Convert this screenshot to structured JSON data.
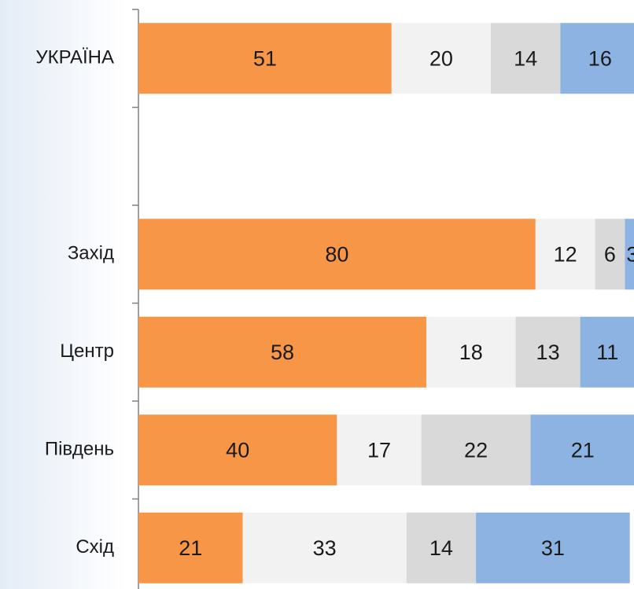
{
  "chart_data": {
    "type": "stacked_barh",
    "categories": [
      "УКРАЇНА",
      null,
      "Захід",
      "Центр",
      "Південь",
      "Схід"
    ],
    "series": [
      {
        "color": "#f79646",
        "values": [
          51,
          null,
          80,
          58,
          40,
          21
        ]
      },
      {
        "color": "#f2f2f2",
        "values": [
          20,
          null,
          12,
          18,
          17,
          33
        ]
      },
      {
        "color": "#d9d9d9",
        "values": [
          14,
          null,
          6,
          13,
          22,
          14
        ]
      },
      {
        "color": "#8db3e2",
        "values": [
          16,
          null,
          3,
          11,
          21,
          31
        ]
      }
    ],
    "xlim": [
      0,
      100
    ]
  }
}
